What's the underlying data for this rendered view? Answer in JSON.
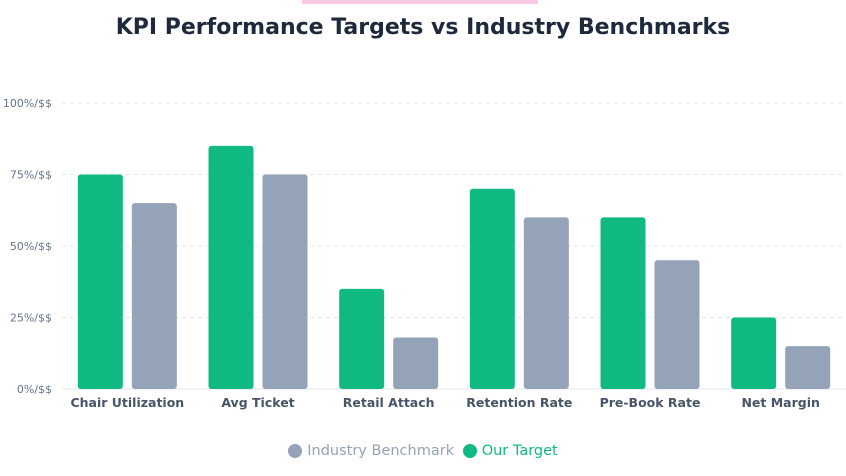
{
  "title": "KPI Performance Targets vs Industry Benchmarks",
  "colors": {
    "accent": "#f9c9e6",
    "title": "#1e293b",
    "grid": "#e5e7eb",
    "axis_text": "#64748b",
    "category_text": "#475569"
  },
  "legend": [
    {
      "name": "Industry Benchmark",
      "color": "#94a3b8",
      "text_color": "#94a3b8"
    },
    {
      "name": "Our Target",
      "color": "#10b981",
      "text_color": "#10b981"
    }
  ],
  "chart_data": {
    "type": "bar",
    "title": "KPI Performance Targets vs Industry Benchmarks",
    "categories": [
      "Chair Utilization",
      "Avg Ticket",
      "Retail Attach",
      "Retention Rate",
      "Pre-Book Rate",
      "Net Margin"
    ],
    "series": [
      {
        "name": "Our Target",
        "color": "#10b981",
        "values": [
          75,
          85,
          35,
          70,
          60,
          25
        ]
      },
      {
        "name": "Industry Benchmark",
        "color": "#94a3b8",
        "values": [
          65,
          75,
          18,
          60,
          45,
          15
        ]
      }
    ],
    "yticks": [
      0,
      25,
      50,
      75,
      100
    ],
    "ytick_labels": [
      "0%/$$",
      "25%/$$",
      "50%/$$",
      "75%/$$",
      "100%/$$"
    ],
    "ylim": [
      0,
      100
    ],
    "xlabel": "",
    "ylabel": "",
    "grid": true,
    "legend_position": "bottom"
  }
}
